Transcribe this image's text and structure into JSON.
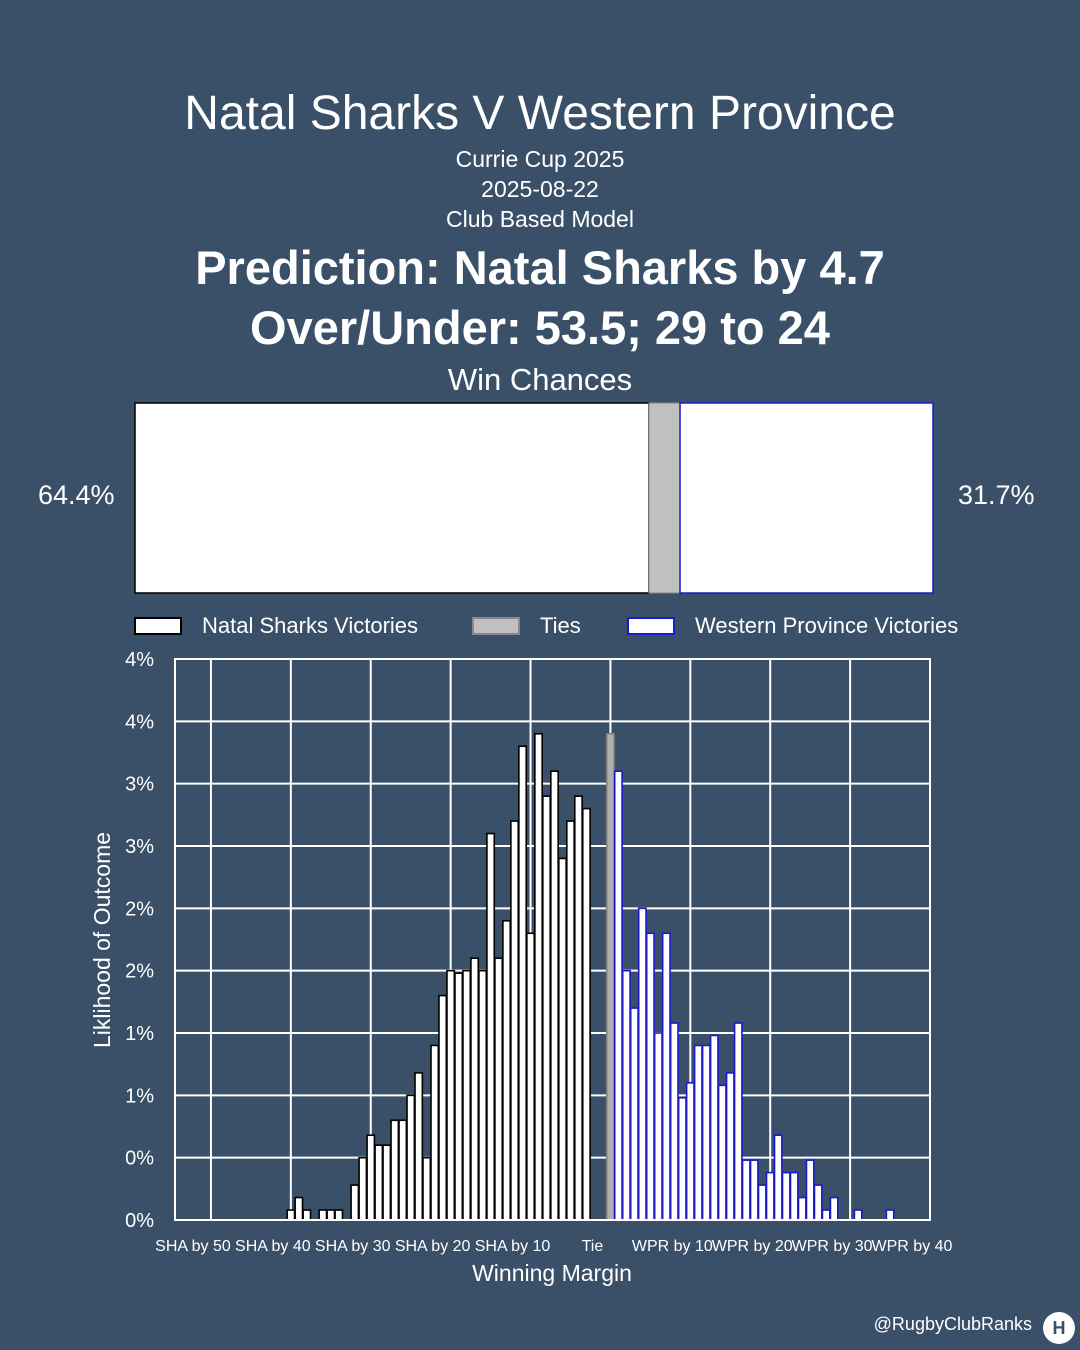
{
  "title": "Natal Sharks V Western Province",
  "competition": "Currie Cup 2025",
  "date": "2025-08-22",
  "model": "Club Based Model",
  "prediction": "Prediction: Natal Sharks by 4.7",
  "over_under": "Over/Under: 53.5; 29 to 24",
  "win_chances_title": "Win Chances",
  "win_chances": {
    "home_pct": 64.4,
    "tie_pct": 3.9,
    "away_pct": 31.7,
    "home_label": "64.4%",
    "away_label": "31.7%"
  },
  "legend": {
    "home": "Natal Sharks Victories",
    "tie": "Ties",
    "away": "Western Province Victories"
  },
  "credit": "@RugbyClubRanks",
  "colors": {
    "background": "#3a5068",
    "home_fill": "#ffffff",
    "tie_fill": "#c0c0c0",
    "away_border": "#1a1acc"
  },
  "chart_data": {
    "type": "bar",
    "xlabel": "Winning Margin",
    "ylabel": "Liklihood of Outcome",
    "xlim": [
      -54.5,
      40
    ],
    "ylim": [
      0,
      4.5
    ],
    "grid": true,
    "x_ticks": [
      {
        "value": -50,
        "label": "SHA by 50"
      },
      {
        "value": -40,
        "label": "SHA by 40"
      },
      {
        "value": -30,
        "label": "SHA by 30"
      },
      {
        "value": -20,
        "label": "SHA by 20"
      },
      {
        "value": -10,
        "label": "SHA by 10"
      },
      {
        "value": 0,
        "label": "Tie"
      },
      {
        "value": 10,
        "label": "WPR by 10"
      },
      {
        "value": 20,
        "label": "WPR by 20"
      },
      {
        "value": 30,
        "label": "WPR by 30"
      },
      {
        "value": 40,
        "label": "WPR by 40"
      }
    ],
    "y_ticks": [
      {
        "value": 0,
        "label": "0%"
      },
      {
        "value": 0.5,
        "label": "0%"
      },
      {
        "value": 1.0,
        "label": "1%"
      },
      {
        "value": 1.5,
        "label": "1%"
      },
      {
        "value": 2.0,
        "label": "2%"
      },
      {
        "value": 2.5,
        "label": "2%"
      },
      {
        "value": 3.0,
        "label": "3%"
      },
      {
        "value": 3.5,
        "label": "3%"
      },
      {
        "value": 4.0,
        "label": "4%"
      },
      {
        "value": 4.5,
        "label": "4%"
      }
    ],
    "series": [
      {
        "name": "Natal Sharks Victories",
        "x": [
          -40,
          -39,
          -38,
          -37,
          -36,
          -35,
          -34,
          -33,
          -32,
          -31,
          -30,
          -29,
          -28,
          -27,
          -26,
          -25,
          -24,
          -23,
          -22,
          -21,
          -20,
          -19,
          -18,
          -17,
          -16,
          -15,
          -14,
          -13,
          -12,
          -11,
          -10,
          -9,
          -8,
          -7,
          -6,
          -5,
          -4,
          -3,
          -2,
          -1
        ],
        "values": [
          0.08,
          0.18,
          0.08,
          0,
          0.08,
          0.08,
          0.08,
          0,
          0.28,
          0.5,
          0.68,
          0.6,
          0.6,
          0.8,
          0.8,
          1.0,
          1.18,
          0.5,
          1.4,
          1.8,
          2.0,
          1.98,
          2.0,
          2.1,
          2.0,
          3.1,
          2.1,
          2.4,
          3.2,
          3.8,
          2.3,
          3.9,
          3.4,
          3.6,
          2.9,
          3.2,
          3.4,
          3.3,
          0,
          0
        ]
      },
      {
        "name": "Ties",
        "x": [
          0
        ],
        "values": [
          3.9
        ]
      },
      {
        "name": "Western Province Victories",
        "x": [
          1,
          2,
          3,
          4,
          5,
          6,
          7,
          8,
          9,
          10,
          11,
          12,
          13,
          14,
          15,
          16,
          17,
          18,
          19,
          20,
          21,
          22,
          23,
          24,
          25,
          26,
          27,
          28,
          29,
          30,
          31,
          32,
          33,
          34,
          35,
          36,
          37,
          38,
          39
        ],
        "values": [
          3.6,
          2.0,
          1.7,
          2.5,
          2.3,
          1.5,
          2.3,
          1.58,
          0.98,
          1.1,
          1.4,
          1.4,
          1.48,
          1.08,
          1.18,
          1.58,
          0.48,
          0.48,
          0.28,
          0.38,
          0.68,
          0.38,
          0.38,
          0.18,
          0.48,
          0.28,
          0.08,
          0.18,
          0,
          0,
          0.08,
          0,
          0,
          0,
          0.08,
          0,
          0,
          0,
          0
        ]
      }
    ]
  }
}
